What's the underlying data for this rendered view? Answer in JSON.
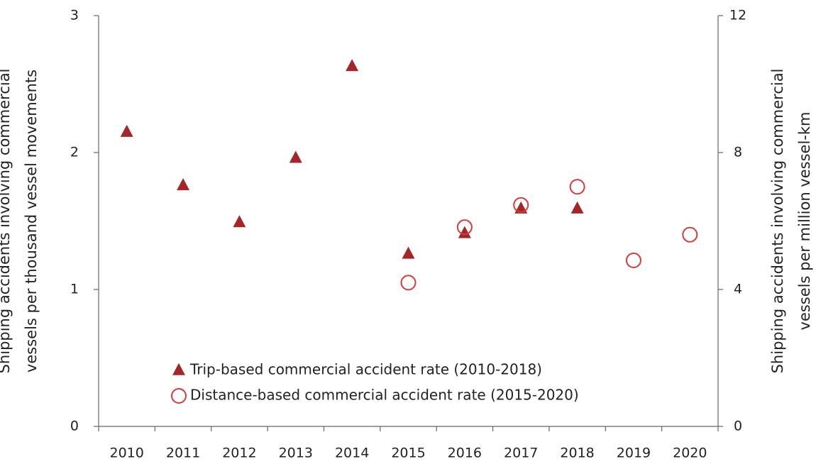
{
  "chart_data": {
    "type": "scatter",
    "categories": [
      "2010",
      "2011",
      "2012",
      "2013",
      "2014",
      "2015",
      "2016",
      "2017",
      "2018",
      "2019",
      "2020"
    ],
    "series": [
      {
        "name": "Trip-based commercial accident rate (2010-2018)",
        "color": "#a52628",
        "marker": "triangle",
        "axis": "y",
        "values": [
          2.15,
          1.76,
          1.49,
          1.96,
          2.63,
          1.26,
          1.41,
          1.59,
          1.59,
          null,
          null
        ]
      },
      {
        "name": "Distance-based commercial accident rate (2015-2020)",
        "color": "#d93a3a",
        "marker": "circle",
        "axis": "y2",
        "values": [
          null,
          null,
          null,
          null,
          null,
          4.2,
          5.82,
          6.47,
          7.0,
          4.85,
          5.6
        ]
      }
    ],
    "ylabel": [
      "Shipping  accidents involving commercial",
      "vessels per thousand vessel movements"
    ],
    "y2label": [
      "Shipping  accidents involving commercial",
      "vessels per million vessel-km"
    ],
    "ylim": [
      0,
      3
    ],
    "yticks": [
      0,
      1,
      2,
      3
    ],
    "y2lim": [
      0,
      12
    ],
    "y2ticks": [
      0,
      4,
      8,
      12
    ],
    "legend": "lower left"
  }
}
